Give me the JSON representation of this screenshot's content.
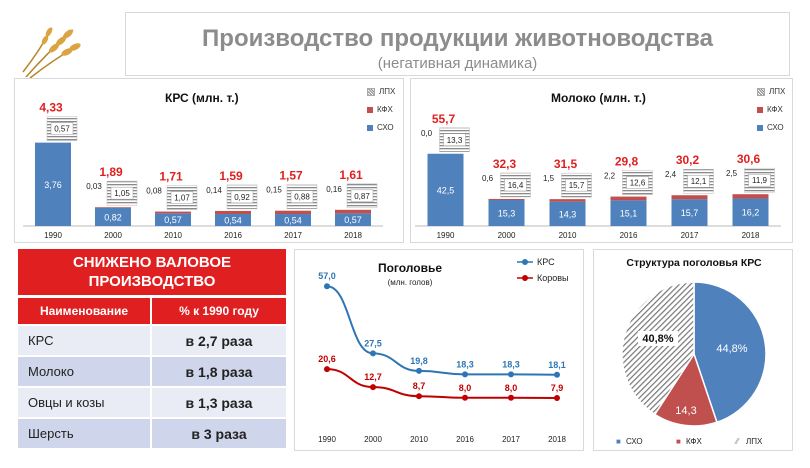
{
  "header": {
    "title": "Производство продукции животноводства",
    "subtitle": "(негативная динамика)"
  },
  "colors": {
    "sho": "#4f81bd",
    "kfh": "#c0504d",
    "accent_red": "#e02020",
    "line_blue": "#2e75b6",
    "line_red": "#c00000"
  },
  "legend_labels": {
    "lph": "ЛПХ",
    "kfh": "КФХ",
    "sho": "СХО"
  },
  "table": {
    "title": "СНИЖЕНО ВАЛОВОЕ ПРОИЗВОДСТВО",
    "headers": [
      "Наименование",
      "% к 1990 году"
    ],
    "rows": [
      [
        "КРС",
        "в 2,7 раза"
      ],
      [
        "Молоко",
        "в 1,8 раза"
      ],
      [
        "Овцы и козы",
        "в 1,3 раза"
      ],
      [
        "Шерсть",
        "в 3 раза"
      ]
    ]
  },
  "chart_data": [
    {
      "type": "bar",
      "title": "КРС (млн. т.)",
      "categories": [
        "1990",
        "2000",
        "2010",
        "2016",
        "2017",
        "2018"
      ],
      "totals": [
        "4,33",
        "1,89",
        "1,71",
        "1,59",
        "1,57",
        "1,61"
      ],
      "series": [
        {
          "name": "СХО",
          "values": [
            3.76,
            0.82,
            0.57,
            0.54,
            0.54,
            0.57
          ],
          "labels": [
            "3,76",
            "0,82",
            "0,57",
            "0,54",
            "0,54",
            "0,57"
          ]
        },
        {
          "name": "КФХ",
          "values": [
            0,
            0.03,
            0.08,
            0.14,
            0.15,
            0.16
          ],
          "labels": [
            "",
            "0,03",
            "0,08",
            "0,14",
            "0,15",
            "0,16"
          ]
        },
        {
          "name": "ЛПХ",
          "values": [
            0.57,
            1.05,
            1.07,
            0.92,
            0.88,
            0.87
          ],
          "labels": [
            "0,57",
            "1,05",
            "1,07",
            "0,92",
            "0,88",
            "0,87"
          ]
        }
      ],
      "legend": "top-right",
      "ylim": [
        0,
        4.6
      ]
    },
    {
      "type": "bar",
      "title": "Молоко (млн. т.)",
      "categories": [
        "1990",
        "2000",
        "2010",
        "2016",
        "2017",
        "2018"
      ],
      "totals": [
        "55,7",
        "32,3",
        "31,5",
        "29,8",
        "30,2",
        "30,6"
      ],
      "series": [
        {
          "name": "СХО",
          "values": [
            42.5,
            15.3,
            14.3,
            15.1,
            15.7,
            16.2
          ],
          "labels": [
            "42,5",
            "15,3",
            "14,3",
            "15,1",
            "15,7",
            "16,2"
          ]
        },
        {
          "name": "КФХ",
          "values": [
            0.0,
            0.6,
            1.5,
            2.2,
            2.4,
            2.5
          ],
          "labels": [
            "0,0",
            "0,6",
            "1,5",
            "2,2",
            "2,4",
            "2,5"
          ]
        },
        {
          "name": "ЛПХ",
          "values": [
            13.3,
            16.4,
            15.7,
            12.6,
            12.1,
            11.9
          ],
          "labels": [
            "13,3",
            "16,4",
            "15,7",
            "12,6",
            "12,1",
            "11,9"
          ]
        }
      ],
      "legend": "top-right",
      "ylim": [
        0,
        60
      ]
    },
    {
      "type": "line",
      "title": "Поголовье",
      "subtitle": "(млн. голов)",
      "x": [
        "1990",
        "2000",
        "2010",
        "2016",
        "2017",
        "2018"
      ],
      "series": [
        {
          "name": "КРС",
          "values": [
            57.0,
            27.5,
            19.8,
            18.3,
            18.3,
            18.1
          ],
          "labels": [
            "57,0",
            "27,5",
            "19,8",
            "18,3",
            "18,3",
            "18,1"
          ]
        },
        {
          "name": "Коровы",
          "values": [
            20.6,
            12.7,
            8.7,
            8.0,
            8.0,
            7.9
          ],
          "labels": [
            "20,6",
            "12,7",
            "8,7",
            "8,0",
            "8,0",
            "7,9"
          ]
        }
      ],
      "legend": "top-right",
      "ylim": [
        0,
        65
      ]
    },
    {
      "type": "pie",
      "title": "Структура поголовья КРС",
      "slices": [
        {
          "name": "СХО",
          "value": 44.8,
          "label": "44,8%"
        },
        {
          "name": "КФХ",
          "value": 14.3,
          "label": "14,3"
        },
        {
          "name": "ЛПХ",
          "value": 40.8,
          "label": "40,8%"
        }
      ],
      "legend": "bottom"
    }
  ]
}
